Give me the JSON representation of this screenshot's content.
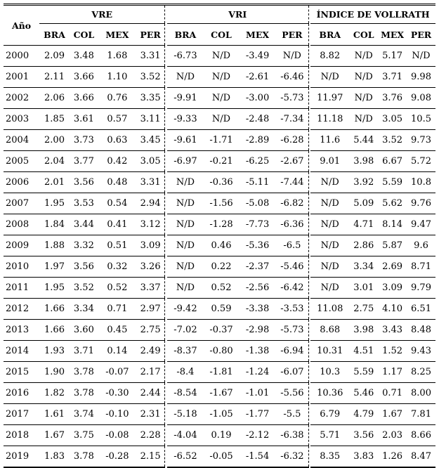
{
  "header": {
    "year_label": "Año",
    "groups": [
      "VRE",
      "VRI",
      "ÍNDICE DE VOLLRATH"
    ],
    "countries": [
      "BRA",
      "COL",
      "MEX",
      "PER"
    ]
  },
  "rows": [
    {
      "year": "2000",
      "vre": [
        "2.09",
        "3.48",
        "1.68",
        "3.31"
      ],
      "vri": [
        "-6.73",
        "N/D",
        "-3.49",
        "N/D"
      ],
      "vol": [
        "8.82",
        "N/D",
        "5.17",
        "N/D"
      ]
    },
    {
      "year": "2001",
      "vre": [
        "2.11",
        "3.66",
        "1.10",
        "3.52"
      ],
      "vri": [
        "N/D",
        "N/D",
        "-2.61",
        "-6.46"
      ],
      "vol": [
        "N/D",
        "N/D",
        "3.71",
        "9.98"
      ]
    },
    {
      "year": "2002",
      "vre": [
        "2.06",
        "3.66",
        "0.76",
        "3.35"
      ],
      "vri": [
        "-9.91",
        "N/D",
        "-3.00",
        "-5.73"
      ],
      "vol": [
        "11.97",
        "N/D",
        "3.76",
        "9.08"
      ]
    },
    {
      "year": "2003",
      "vre": [
        "1.85",
        "3.61",
        "0.57",
        "3.11"
      ],
      "vri": [
        "-9.33",
        "N/D",
        "-2.48",
        "-7.34"
      ],
      "vol": [
        "11.18",
        "N/D",
        "3.05",
        "10.5"
      ]
    },
    {
      "year": "2004",
      "vre": [
        "2.00",
        "3.73",
        "0.63",
        "3.45"
      ],
      "vri": [
        "-9.61",
        "-1.71",
        "-2.89",
        "-6.28"
      ],
      "vol": [
        "11.6",
        "5.44",
        "3.52",
        "9.73"
      ]
    },
    {
      "year": "2005",
      "vre": [
        "2.04",
        "3.77",
        "0.42",
        "3.05"
      ],
      "vri": [
        "-6.97",
        "-0.21",
        "-6.25",
        "-2.67"
      ],
      "vol": [
        "9.01",
        "3.98",
        "6.67",
        "5.72"
      ]
    },
    {
      "year": "2006",
      "vre": [
        "2.01",
        "3.56",
        "0.48",
        "3.31"
      ],
      "vri": [
        "N/D",
        "-0.36",
        "-5.11",
        "-7.44"
      ],
      "vol": [
        "N/D",
        "3.92",
        "5.59",
        "10.8"
      ]
    },
    {
      "year": "2007",
      "vre": [
        "1.95",
        "3.53",
        "0.54",
        "2.94"
      ],
      "vri": [
        "N/D",
        "-1.56",
        "-5.08",
        "-6.82"
      ],
      "vol": [
        "N/D",
        "5.09",
        "5.62",
        "9.76"
      ]
    },
    {
      "year": "2008",
      "vre": [
        "1.84",
        "3.44",
        "0.41",
        "3.12"
      ],
      "vri": [
        "N/D",
        "-1.28",
        "-7.73",
        "-6.36"
      ],
      "vol": [
        "N/D",
        "4.71",
        "8.14",
        "9.47"
      ]
    },
    {
      "year": "2009",
      "vre": [
        "1.88",
        "3.32",
        "0.51",
        "3.09"
      ],
      "vri": [
        "N/D",
        "0.46",
        "-5.36",
        "-6.5"
      ],
      "vol": [
        "N/D",
        "2.86",
        "5.87",
        "9.6"
      ]
    },
    {
      "year": "2010",
      "vre": [
        "1.97",
        "3.56",
        "0.32",
        "3.26"
      ],
      "vri": [
        "N/D",
        "0.22",
        "-2.37",
        "-5.46"
      ],
      "vol": [
        "N/D",
        "3.34",
        "2.69",
        "8.71"
      ]
    },
    {
      "year": "2011",
      "vre": [
        "1.95",
        "3.52",
        "0.52",
        "3.37"
      ],
      "vri": [
        "N/D",
        "0.52",
        "-2.56",
        "-6.42"
      ],
      "vol": [
        "N/D",
        "3.01",
        "3.09",
        "9.79"
      ]
    },
    {
      "year": "2012",
      "vre": [
        "1.66",
        "3.34",
        "0.71",
        "2.97"
      ],
      "vri": [
        "-9.42",
        "0.59",
        "-3.38",
        "-3.53"
      ],
      "vol": [
        "11.08",
        "2.75",
        "4.10",
        "6.51"
      ]
    },
    {
      "year": "2013",
      "vre": [
        "1.66",
        "3.60",
        "0.45",
        "2.75"
      ],
      "vri": [
        "-7.02",
        "-0.37",
        "-2.98",
        "-5.73"
      ],
      "vol": [
        "8.68",
        "3.98",
        "3.43",
        "8.48"
      ]
    },
    {
      "year": "2014",
      "vre": [
        "1.93",
        "3.71",
        "0.14",
        "2.49"
      ],
      "vri": [
        "-8.37",
        "-0.80",
        "-1.38",
        "-6.94"
      ],
      "vol": [
        "10.31",
        "4.51",
        "1.52",
        "9.43"
      ]
    },
    {
      "year": "2015",
      "vre": [
        "1.90",
        "3.78",
        "-0.07",
        "2.17"
      ],
      "vri": [
        "-8.4",
        "-1.81",
        "-1.24",
        "-6.07"
      ],
      "vol": [
        "10.3",
        "5.59",
        "1.17",
        "8.25"
      ]
    },
    {
      "year": "2016",
      "vre": [
        "1.82",
        "3.78",
        "-0.30",
        "2.44"
      ],
      "vri": [
        "-8.54",
        "-1.67",
        "-1.01",
        "-5.56"
      ],
      "vol": [
        "10.36",
        "5.46",
        "0.71",
        "8.00"
      ]
    },
    {
      "year": "2017",
      "vre": [
        "1.61",
        "3.74",
        "-0.10",
        "2.31"
      ],
      "vri": [
        "-5.18",
        "-1.05",
        "-1.77",
        "-5.5"
      ],
      "vol": [
        "6.79",
        "4.79",
        "1.67",
        "7.81"
      ]
    },
    {
      "year": "2018",
      "vre": [
        "1.67",
        "3.75",
        "-0.08",
        "2.28"
      ],
      "vri": [
        "-4.04",
        "0.19",
        "-2.12",
        "-6.38"
      ],
      "vol": [
        "5.71",
        "3.56",
        "2.03",
        "8.66"
      ]
    },
    {
      "year": "2019",
      "vre": [
        "1.83",
        "3.78",
        "-0.28",
        "2.15"
      ],
      "vri": [
        "-6.52",
        "-0.05",
        "-1.54",
        "-6.32"
      ],
      "vol": [
        "8.35",
        "3.83",
        "1.26",
        "8.47"
      ]
    }
  ]
}
